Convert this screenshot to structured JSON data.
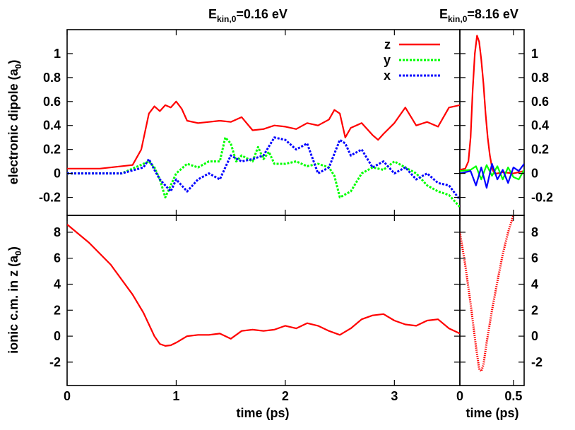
{
  "figure": {
    "title_left": {
      "main": "E",
      "sub": "kin,0",
      "rest": "=0.16 eV"
    },
    "title_right": {
      "main": "E",
      "sub": "kin,0",
      "rest": "=8.16 eV"
    },
    "ylabel_top": {
      "main": "electronic dipole (a",
      "sub": "0",
      "close": ")"
    },
    "ylabel_bottom": {
      "main": "ionic c.m. in z (a",
      "sub": "0",
      "close": ")"
    },
    "xlabel_left": "time  (ps)",
    "xlabel_right": "time  (ps)"
  },
  "chart_data": [
    {
      "type": "line",
      "panel": "electronic dipole, Ekin,0=0.16 eV",
      "xlabel": "time  (ps)",
      "ylabel": "electronic dipole (a0)",
      "xlim": [
        0,
        3.6
      ],
      "ylim": [
        -0.35,
        1.2
      ],
      "xticks": [
        0,
        1,
        2,
        3
      ],
      "yticks": [
        -0.2,
        0,
        0.2,
        0.4,
        0.6,
        0.8,
        1
      ],
      "ytick_labels": [
        "-0.2",
        "0",
        "0.2",
        "0.4",
        "0.6",
        "0.8",
        "1"
      ],
      "legend": {
        "position": "top-right",
        "entries": [
          "z",
          "y",
          "x"
        ]
      },
      "series": [
        {
          "name": "z",
          "color": "#ff0000",
          "dash": "solid",
          "x": [
            0,
            0.3,
            0.6,
            0.68,
            0.75,
            0.8,
            0.85,
            0.9,
            0.95,
            1.0,
            1.05,
            1.1,
            1.2,
            1.3,
            1.4,
            1.5,
            1.6,
            1.7,
            1.8,
            1.9,
            2.0,
            2.1,
            2.2,
            2.3,
            2.4,
            2.45,
            2.5,
            2.55,
            2.6,
            2.7,
            2.8,
            2.85,
            2.9,
            3.0,
            3.1,
            3.2,
            3.3,
            3.4,
            3.5,
            3.6
          ],
          "y": [
            0.04,
            0.04,
            0.07,
            0.2,
            0.5,
            0.56,
            0.52,
            0.57,
            0.55,
            0.6,
            0.54,
            0.44,
            0.42,
            0.43,
            0.44,
            0.43,
            0.47,
            0.36,
            0.37,
            0.4,
            0.39,
            0.37,
            0.42,
            0.4,
            0.45,
            0.53,
            0.5,
            0.3,
            0.38,
            0.42,
            0.32,
            0.28,
            0.33,
            0.42,
            0.55,
            0.4,
            0.43,
            0.39,
            0.55,
            0.57
          ]
        },
        {
          "name": "y",
          "color": "#00ff00",
          "dash": "dotted",
          "x": [
            0,
            0.5,
            0.7,
            0.75,
            0.8,
            0.85,
            0.9,
            0.95,
            1.0,
            1.1,
            1.2,
            1.3,
            1.4,
            1.45,
            1.5,
            1.55,
            1.6,
            1.7,
            1.75,
            1.8,
            1.85,
            1.9,
            2.0,
            2.1,
            2.2,
            2.3,
            2.4,
            2.45,
            2.5,
            2.6,
            2.7,
            2.8,
            2.9,
            3.0,
            3.1,
            3.2,
            3.3,
            3.4,
            3.5,
            3.6
          ],
          "y": [
            0.0,
            0.0,
            0.08,
            0.1,
            0.05,
            -0.05,
            -0.2,
            -0.1,
            0.0,
            0.08,
            0.05,
            0.1,
            0.1,
            0.3,
            0.25,
            0.1,
            0.15,
            0.1,
            0.22,
            0.12,
            0.18,
            0.08,
            0.08,
            0.1,
            0.06,
            0.08,
            0.05,
            -0.02,
            -0.2,
            -0.15,
            0.0,
            0.05,
            0.03,
            0.1,
            0.05,
            0.0,
            -0.1,
            -0.15,
            -0.18,
            -0.28
          ]
        },
        {
          "name": "x",
          "color": "#0000ff",
          "dash": "dotted",
          "x": [
            0,
            0.5,
            0.7,
            0.75,
            0.8,
            0.85,
            0.9,
            0.95,
            1.0,
            1.05,
            1.1,
            1.2,
            1.3,
            1.4,
            1.5,
            1.6,
            1.7,
            1.8,
            1.9,
            2.0,
            2.1,
            2.2,
            2.3,
            2.4,
            2.5,
            2.55,
            2.6,
            2.7,
            2.8,
            2.9,
            3.0,
            3.1,
            3.2,
            3.3,
            3.4,
            3.5,
            3.6
          ],
          "y": [
            0.0,
            0.0,
            0.05,
            0.12,
            0.03,
            -0.05,
            -0.1,
            -0.15,
            -0.05,
            -0.1,
            -0.15,
            -0.05,
            0.0,
            -0.05,
            0.15,
            0.1,
            0.12,
            0.15,
            0.3,
            0.28,
            0.2,
            0.25,
            0.0,
            0.05,
            0.28,
            0.25,
            0.15,
            0.2,
            0.05,
            0.1,
            0.0,
            0.05,
            -0.05,
            0.0,
            -0.08,
            -0.1,
            -0.22
          ]
        }
      ]
    },
    {
      "type": "line",
      "panel": "electronic dipole, Ekin,0=8.16 eV",
      "xlabel": "time  (ps)",
      "ylabel": "electronic dipole (a0)",
      "xlim": [
        0,
        0.6
      ],
      "ylim": [
        -0.35,
        1.2
      ],
      "xticks": [
        0,
        0.5
      ],
      "yticks": [
        -0.2,
        0,
        0.2,
        0.4,
        0.6,
        0.8,
        1
      ],
      "ytick_labels": [
        "-0.2",
        "0",
        "0.2",
        "0.4",
        "0.6",
        "0.8",
        "1"
      ],
      "series": [
        {
          "name": "z",
          "color": "#ff0000",
          "dash": "solid",
          "x": [
            0,
            0.05,
            0.08,
            0.1,
            0.12,
            0.14,
            0.16,
            0.18,
            0.2,
            0.22,
            0.24,
            0.26,
            0.28,
            0.3,
            0.32,
            0.35,
            0.4,
            0.5,
            0.6
          ],
          "y": [
            0.03,
            0.04,
            0.1,
            0.3,
            0.7,
            1.0,
            1.15,
            1.1,
            0.95,
            0.75,
            0.5,
            0.3,
            0.15,
            0.05,
            0.0,
            0.0,
            0.01,
            0.0,
            0.02
          ]
        },
        {
          "name": "y",
          "color": "#00ff00",
          "dash": "solid",
          "x": [
            0,
            0.1,
            0.15,
            0.2,
            0.25,
            0.3,
            0.35,
            0.4,
            0.45,
            0.5,
            0.55,
            0.6
          ],
          "y": [
            0.02,
            0.03,
            0.06,
            -0.05,
            0.07,
            -0.02,
            0.06,
            -0.05,
            0.05,
            -0.03,
            -0.05,
            0.03
          ]
        },
        {
          "name": "x",
          "color": "#0000ff",
          "dash": "solid",
          "x": [
            0,
            0.1,
            0.15,
            0.2,
            0.25,
            0.3,
            0.35,
            0.4,
            0.45,
            0.5,
            0.55,
            0.6
          ],
          "y": [
            0.0,
            0.02,
            -0.1,
            0.05,
            -0.12,
            0.08,
            -0.05,
            0.03,
            -0.08,
            0.05,
            0.02,
            0.08
          ]
        }
      ]
    },
    {
      "type": "line",
      "panel": "ionic c.m., Ekin,0=0.16 eV",
      "xlabel": "time  (ps)",
      "ylabel": "ionic c.m. in z (a0)",
      "xlim": [
        0,
        3.6
      ],
      "ylim": [
        -3.8,
        9.3
      ],
      "xticks": [
        0,
        1,
        2,
        3
      ],
      "yticks": [
        -2,
        0,
        2,
        4,
        6,
        8
      ],
      "ytick_labels": [
        "-2",
        "0",
        "2",
        "4",
        "6",
        "8"
      ],
      "series": [
        {
          "name": "z",
          "color": "#ff0000",
          "dash": "solid",
          "x": [
            0,
            0.2,
            0.4,
            0.6,
            0.7,
            0.8,
            0.85,
            0.9,
            0.95,
            1.0,
            1.1,
            1.2,
            1.3,
            1.4,
            1.5,
            1.6,
            1.7,
            1.8,
            1.9,
            2.0,
            2.1,
            2.2,
            2.3,
            2.4,
            2.5,
            2.6,
            2.7,
            2.8,
            2.9,
            3.0,
            3.1,
            3.2,
            3.3,
            3.4,
            3.5,
            3.6
          ],
          "y": [
            8.6,
            7.2,
            5.5,
            3.2,
            1.8,
            0.0,
            -0.6,
            -0.75,
            -0.7,
            -0.5,
            0.0,
            0.1,
            0.1,
            0.2,
            -0.2,
            0.4,
            0.5,
            0.4,
            0.5,
            0.8,
            0.6,
            1.0,
            0.8,
            0.4,
            0.1,
            0.6,
            1.3,
            1.6,
            1.7,
            1.2,
            0.9,
            0.8,
            1.2,
            1.3,
            0.6,
            0.2
          ]
        }
      ]
    },
    {
      "type": "line",
      "panel": "ionic c.m., Ekin,0=8.16 eV",
      "xlabel": "time  (ps)",
      "ylabel": "ionic c.m. in z (a0)",
      "xlim": [
        0,
        0.6
      ],
      "ylim": [
        -3.8,
        9.3
      ],
      "xticks": [
        0,
        0.5
      ],
      "yticks": [
        -2,
        0,
        2,
        4,
        6,
        8
      ],
      "ytick_labels": [
        "-2",
        "0",
        "2",
        "4",
        "6",
        "8"
      ],
      "series": [
        {
          "name": "z",
          "color": "#ff0000",
          "dash": "dotted",
          "x": [
            0,
            0.05,
            0.1,
            0.15,
            0.18,
            0.2,
            0.22,
            0.25,
            0.3,
            0.35,
            0.4,
            0.45,
            0.5
          ],
          "y": [
            8.0,
            5.5,
            2.5,
            -0.8,
            -2.5,
            -2.7,
            -2.2,
            -0.5,
            2.0,
            4.2,
            6.3,
            8.0,
            9.3
          ]
        }
      ]
    }
  ]
}
